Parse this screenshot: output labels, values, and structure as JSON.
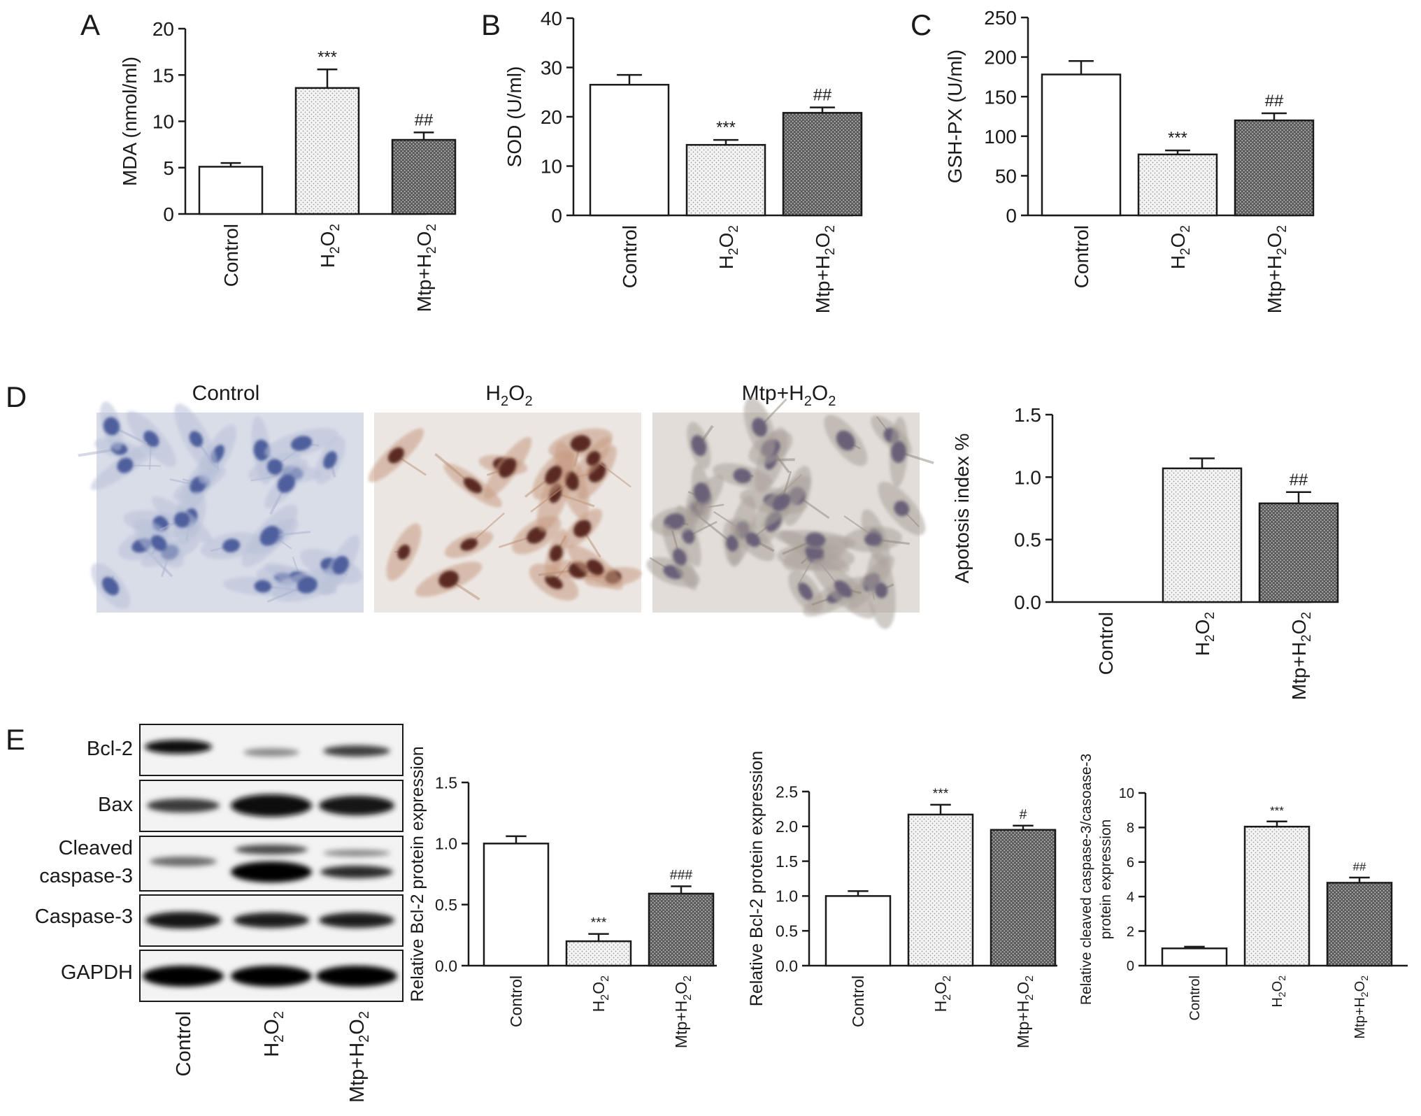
{
  "panel_letters": [
    "A",
    "B",
    "C",
    "D",
    "E"
  ],
  "colors": {
    "control": "#ffffff",
    "h2o2": "#efefef",
    "mtp": "#6f6f6f",
    "ink": "#1a1a1a"
  },
  "micrographs": {
    "labels": [
      {
        "base": "Control",
        "sub": ""
      },
      {
        "base": "H",
        "sub": "2",
        "base2": "O",
        "sub2": "2"
      },
      {
        "base": "Mtp+H",
        "sub": "2",
        "base2": "O",
        "sub2": "2"
      }
    ]
  },
  "western_blot": {
    "bands": [
      "Bcl-2",
      "Bax",
      "Cleaved",
      "caspase-3",
      "Caspase-3",
      "GAPDH"
    ],
    "lanes": [
      "Control",
      "H2O2",
      "Mtp+H2O2"
    ]
  },
  "chart_data": [
    {
      "panel": "A",
      "type": "bar",
      "categories": [
        "Control",
        "H2O2",
        "Mtp+H2O2"
      ],
      "values": [
        5.1,
        13.6,
        8.0
      ],
      "errors": [
        0.4,
        2.0,
        0.8
      ],
      "annotations": [
        "",
        "***",
        "##"
      ],
      "ylabel": "MDA (nmol/ml)",
      "ylim": [
        0,
        20
      ],
      "yticks": [
        0,
        5,
        10,
        15,
        20
      ],
      "tick_labels": [
        "0",
        "5",
        "10",
        "15",
        "20"
      ]
    },
    {
      "panel": "B",
      "type": "bar",
      "categories": [
        "Control",
        "H2O2",
        "Mtp+H2O2"
      ],
      "values": [
        26.5,
        14.3,
        20.8
      ],
      "errors": [
        2.0,
        1.0,
        1.1
      ],
      "annotations": [
        "",
        "***",
        "##"
      ],
      "ylabel": "SOD (U/ml)",
      "ylim": [
        0,
        40
      ],
      "yticks": [
        0,
        10,
        20,
        30,
        40
      ],
      "tick_labels": [
        "0",
        "10",
        "20",
        "30",
        "40"
      ]
    },
    {
      "panel": "C",
      "type": "bar",
      "categories": [
        "Control",
        "H2O2",
        "Mtp+H2O2"
      ],
      "values": [
        178,
        77,
        120
      ],
      "errors": [
        17,
        5,
        9
      ],
      "annotations": [
        "",
        "***",
        "##"
      ],
      "ylabel": "GSH-PX (U/ml)",
      "ylim": [
        0,
        250
      ],
      "yticks": [
        0,
        50,
        100,
        150,
        200,
        250
      ],
      "tick_labels": [
        "0",
        "50",
        "100",
        "150",
        "200",
        "250"
      ]
    },
    {
      "panel": "D",
      "type": "bar",
      "categories": [
        "Control",
        "H2O2",
        "Mtp+H2O2"
      ],
      "values": [
        0,
        1.07,
        0.79
      ],
      "errors": [
        0,
        0.08,
        0.09
      ],
      "annotations": [
        "",
        "",
        "##"
      ],
      "ylabel": "Apotosis index %",
      "ylim": [
        0,
        1.5
      ],
      "yticks": [
        0,
        0.5,
        1.0,
        1.5
      ],
      "tick_labels": [
        "0.0",
        "0.5",
        "1.0",
        "1.5"
      ]
    },
    {
      "panel": "E1",
      "type": "bar",
      "categories": [
        "Control",
        "H2O2",
        "Mtp+H2O2"
      ],
      "values": [
        1.0,
        0.2,
        0.59
      ],
      "errors": [
        0.06,
        0.06,
        0.06
      ],
      "annotations": [
        "",
        "***",
        "###"
      ],
      "ylabel": "Relative Bcl-2 protein expression",
      "ylim": [
        0,
        1.5
      ],
      "yticks": [
        0,
        0.5,
        1.0,
        1.5
      ],
      "tick_labels": [
        "0.0",
        "0.5",
        "1.0",
        "1.5"
      ]
    },
    {
      "panel": "E2",
      "type": "bar",
      "categories": [
        "Control",
        "H2O2",
        "Mtp+H2O2"
      ],
      "values": [
        1.0,
        2.17,
        1.95
      ],
      "errors": [
        0.07,
        0.14,
        0.06
      ],
      "annotations": [
        "",
        "***",
        "#"
      ],
      "ylabel": "Relative Bcl-2 protein expression",
      "ylim": [
        0,
        2.5
      ],
      "yticks": [
        0,
        0.5,
        1.0,
        1.5,
        2.0,
        2.5
      ],
      "tick_labels": [
        "0.0",
        "0.5",
        "1.0",
        "1.5",
        "2.0",
        "2.5"
      ]
    },
    {
      "panel": "E3",
      "type": "bar",
      "categories": [
        "Control",
        "H2O2",
        "Mtp+H2O2"
      ],
      "values": [
        1.0,
        8.05,
        4.8
      ],
      "errors": [
        0.1,
        0.3,
        0.3
      ],
      "annotations": [
        "",
        "***",
        "##"
      ],
      "ylabel": "Relative cleaved caspase-3/casoase-3",
      "ylabel2": "protein expression",
      "ylim": [
        0,
        10
      ],
      "yticks": [
        0,
        2,
        4,
        6,
        8,
        10
      ],
      "tick_labels": [
        "0",
        "2",
        "4",
        "6",
        "8",
        "10"
      ]
    }
  ]
}
